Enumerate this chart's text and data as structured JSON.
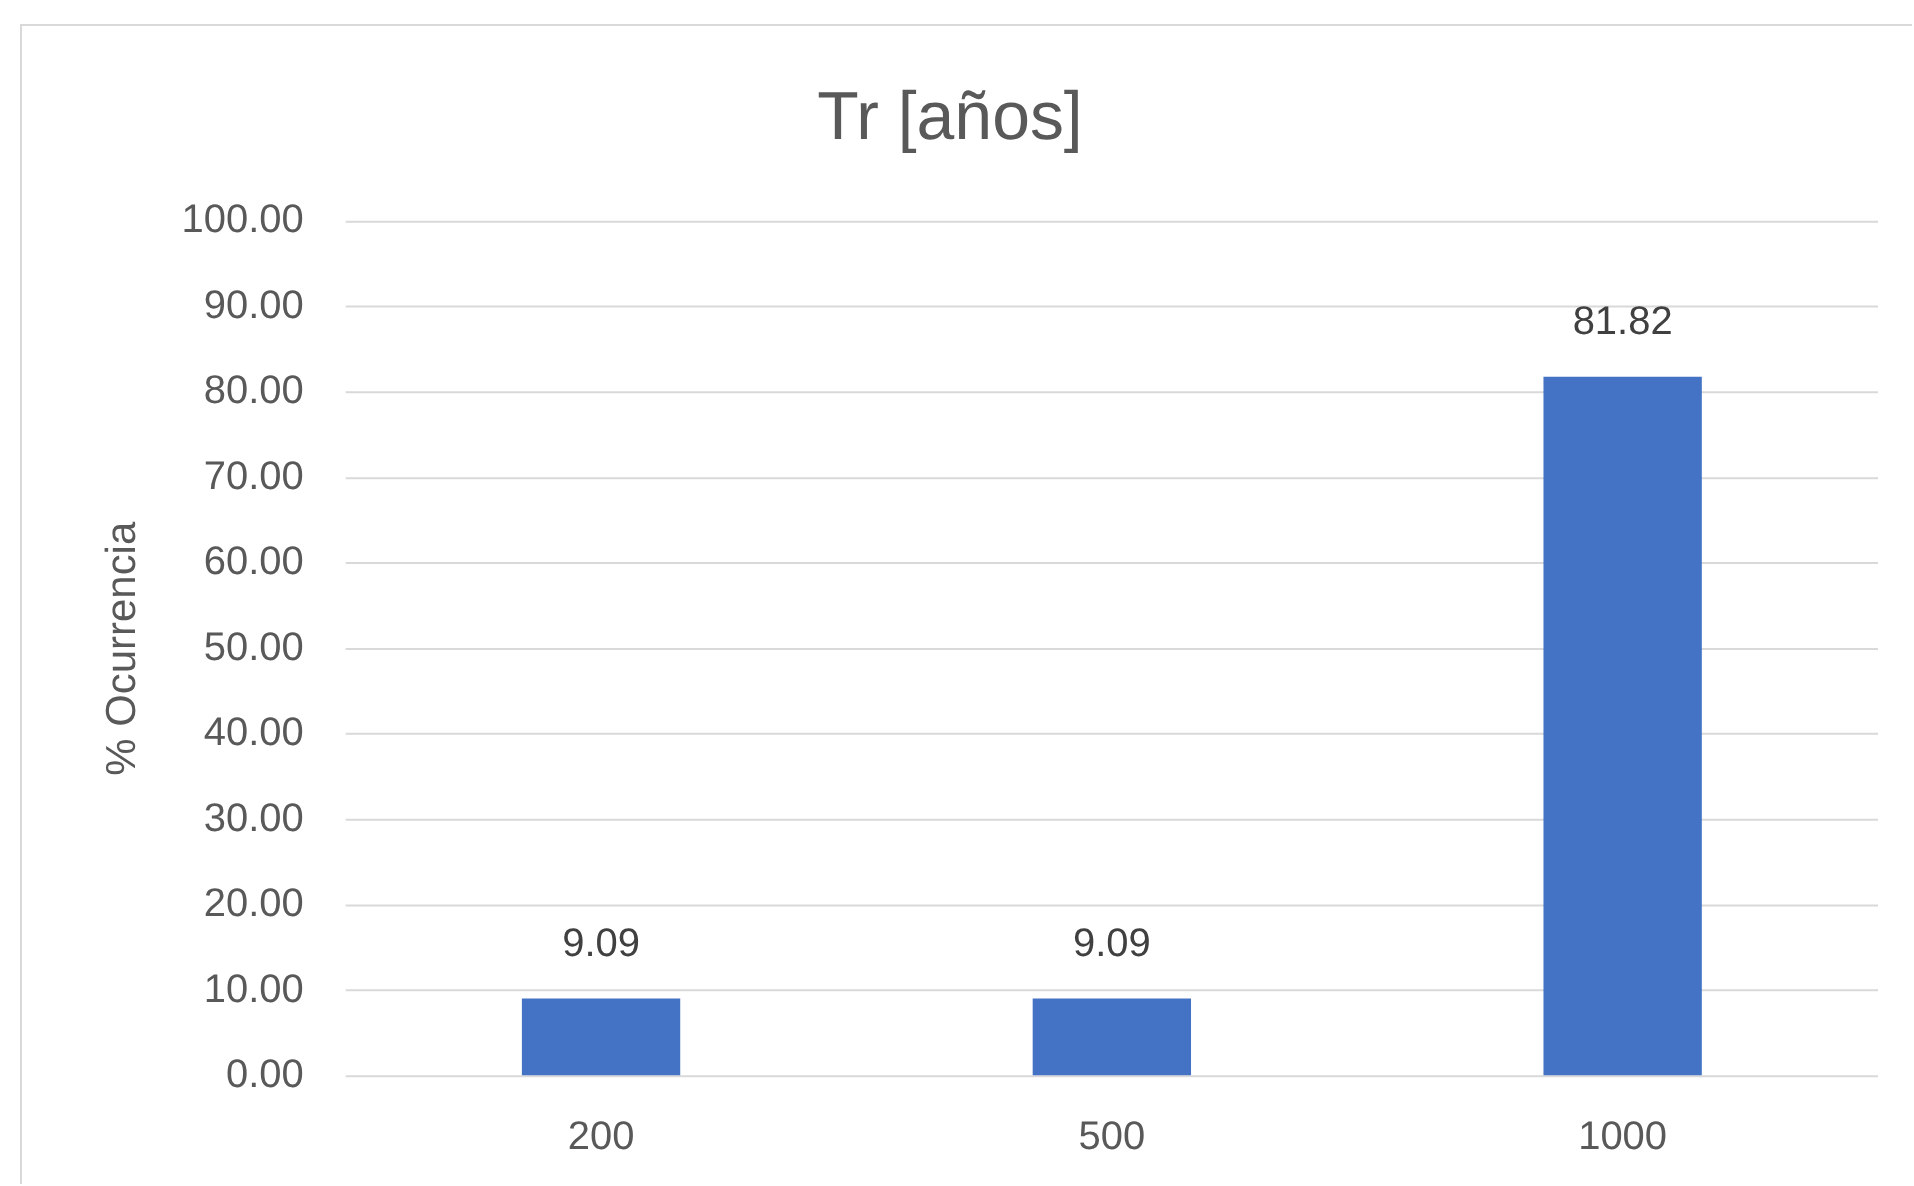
{
  "chart_data": {
    "type": "bar",
    "title": "Tr [años]",
    "ylabel": "% Ocurrencia",
    "categories": [
      "200",
      "500",
      "1000"
    ],
    "values": [
      9.09,
      9.09,
      81.82
    ],
    "color": "#4472c4",
    "ylim": [
      0,
      100
    ],
    "yticks": [
      {
        "value": 0,
        "label": "0.00"
      },
      {
        "value": 10,
        "label": "10.00"
      },
      {
        "value": 20,
        "label": "20.00"
      },
      {
        "value": 30,
        "label": "30.00"
      },
      {
        "value": 40,
        "label": "40.00"
      },
      {
        "value": 50,
        "label": "50.00"
      },
      {
        "value": 60,
        "label": "60.00"
      },
      {
        "value": 70,
        "label": "70.00"
      },
      {
        "value": 80,
        "label": "80.00"
      },
      {
        "value": 90,
        "label": "90.00"
      },
      {
        "value": 100,
        "label": "100.00"
      }
    ],
    "grid": "y",
    "data_labels": true,
    "legend": false
  }
}
